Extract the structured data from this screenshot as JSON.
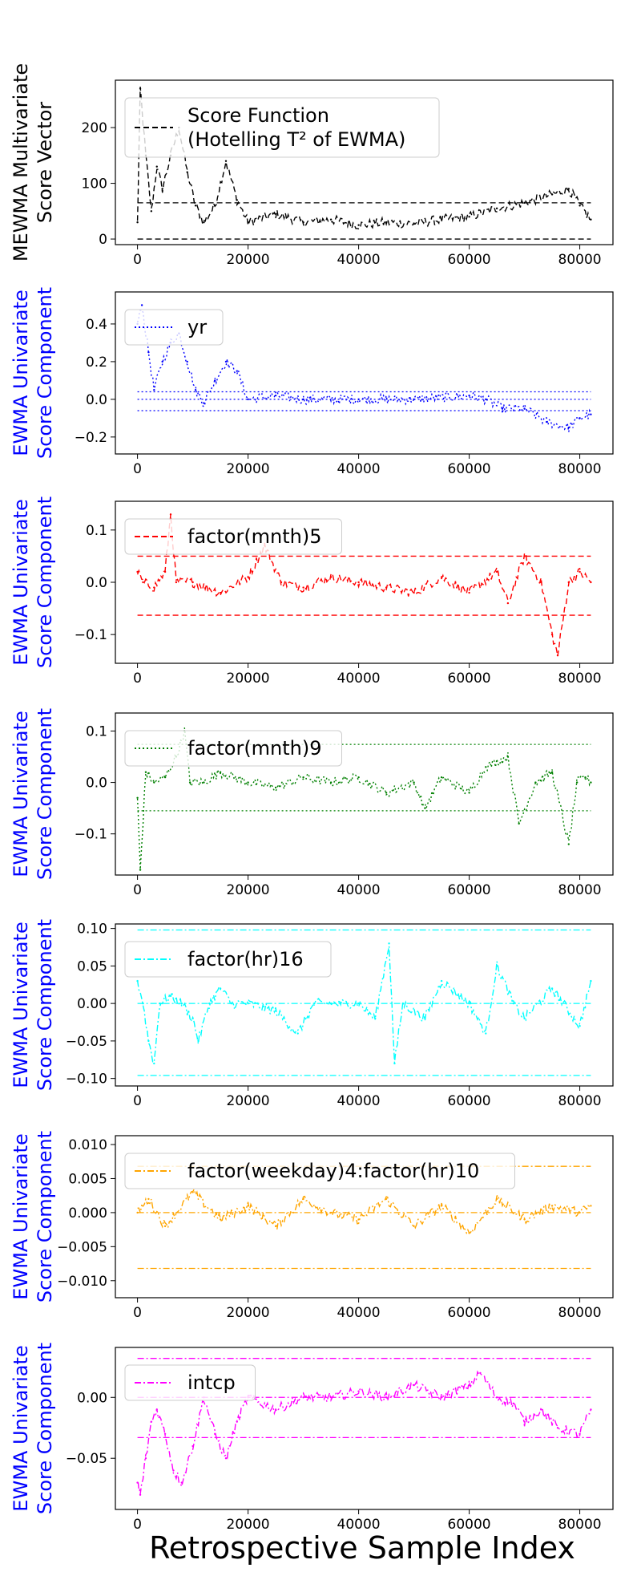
{
  "xlabel": "Retrospective Sample Index",
  "chart_data": [
    {
      "type": "line",
      "ylabel": [
        "MEWMA Multivariate",
        "Score Vector"
      ],
      "ylabel_color": "#000000",
      "color": "#000000",
      "line_style": "dashed",
      "legend": [
        "Score Function",
        "(Hotelling T² of EWMA)"
      ],
      "xlim": [
        -4000,
        86000
      ],
      "ylim": [
        -10,
        285
      ],
      "xticks": [
        0,
        20000,
        40000,
        60000,
        80000
      ],
      "yticks": [
        0,
        100,
        200
      ],
      "ytick_labels": [
        "0",
        "100",
        "200"
      ],
      "ref_lines": [
        65,
        0
      ],
      "series": [
        {
          "x": [
            0,
            500,
            1500,
            2500,
            3500,
            4500,
            6000,
            7500,
            9000,
            10500,
            12000,
            14000,
            16000,
            18000,
            20000,
            25000,
            30000,
            35000,
            40000,
            45000,
            50000,
            55000,
            60000,
            65000,
            70000,
            75000,
            78000,
            80000,
            82000
          ],
          "values": [
            30,
            270,
            150,
            50,
            130,
            90,
            150,
            200,
            120,
            60,
            30,
            60,
            140,
            70,
            30,
            45,
            30,
            35,
            25,
            30,
            28,
            35,
            40,
            55,
            65,
            80,
            90,
            60,
            35
          ]
        }
      ]
    },
    {
      "type": "line",
      "ylabel": [
        "EWMA Univariate",
        "Score Component"
      ],
      "ylabel_color": "#0000ff",
      "color": "#0000ff",
      "line_style": "dotted",
      "legend": [
        "yr"
      ],
      "xlim": [
        -4000,
        86000
      ],
      "ylim": [
        -0.29,
        0.57
      ],
      "xticks": [
        0,
        20000,
        40000,
        60000,
        80000
      ],
      "yticks": [
        -0.2,
        0.0,
        0.2,
        0.4
      ],
      "ytick_labels": [
        "−0.2",
        "0.0",
        "0.2",
        "0.4"
      ],
      "ref_lines": [
        0.04,
        0.0,
        -0.06
      ],
      "series": [
        {
          "x": [
            0,
            800,
            2000,
            3000,
            4500,
            6000,
            7500,
            9000,
            10500,
            12000,
            14000,
            16000,
            18000,
            20000,
            25000,
            30000,
            40000,
            50000,
            60000,
            63000,
            66000,
            70000,
            74000,
            78000,
            80000,
            82000
          ],
          "values": [
            0.4,
            0.5,
            0.25,
            0.05,
            0.2,
            0.3,
            0.35,
            0.2,
            0.05,
            -0.02,
            0.1,
            0.2,
            0.15,
            0.0,
            0.02,
            0.0,
            0.0,
            0.0,
            0.02,
            0.0,
            -0.05,
            -0.05,
            -0.12,
            -0.15,
            -0.1,
            -0.08
          ]
        }
      ]
    },
    {
      "type": "line",
      "ylabel": [
        "EWMA Univariate",
        "Score Component"
      ],
      "ylabel_color": "#0000ff",
      "color": "#ff0000",
      "line_style": "dashed",
      "legend": [
        "factor(mnth)5"
      ],
      "xlim": [
        -4000,
        86000
      ],
      "ylim": [
        -0.155,
        0.155
      ],
      "xticks": [
        0,
        20000,
        40000,
        60000,
        80000
      ],
      "yticks": [
        -0.1,
        0.0,
        0.1
      ],
      "ytick_labels": [
        "−0.1",
        "0.0",
        "0.1"
      ],
      "ref_lines": [
        0.05,
        -0.063
      ],
      "series": [
        {
          "x": [
            0,
            1000,
            3000,
            5000,
            6000,
            7000,
            10000,
            15000,
            20000,
            23000,
            26000,
            30000,
            35000,
            40000,
            45000,
            50000,
            55000,
            60000,
            65000,
            67000,
            70000,
            73000,
            75000,
            76000,
            78000,
            80000,
            82000
          ],
          "values": [
            0.02,
            0.0,
            -0.01,
            0.02,
            0.13,
            0.0,
            0.0,
            -0.02,
            0.01,
            0.07,
            0.0,
            -0.01,
            0.01,
            0.0,
            -0.01,
            -0.02,
            0.01,
            -0.02,
            0.02,
            -0.04,
            0.05,
            0.0,
            -0.1,
            -0.14,
            0.0,
            0.02,
            0.0
          ]
        }
      ]
    },
    {
      "type": "line",
      "ylabel": [
        "EWMA Univariate",
        "Score Component"
      ],
      "ylabel_color": "#0000ff",
      "color": "#008000",
      "line_style": "dotted",
      "legend": [
        "factor(mnth)9"
      ],
      "xlim": [
        -4000,
        86000
      ],
      "ylim": [
        -0.18,
        0.135
      ],
      "xticks": [
        0,
        20000,
        40000,
        60000,
        80000
      ],
      "yticks": [
        -0.1,
        0.0,
        0.1
      ],
      "ytick_labels": [
        "−0.1",
        "0.0",
        "0.1"
      ],
      "ref_lines": [
        0.074,
        -0.055
      ],
      "series": [
        {
          "x": [
            0,
            500,
            1500,
            3000,
            5000,
            7000,
            8500,
            9500,
            12000,
            15000,
            20000,
            25000,
            30000,
            35000,
            40000,
            45000,
            50000,
            52000,
            55000,
            60000,
            63000,
            67000,
            69000,
            72000,
            75000,
            78000,
            79500,
            81000,
            82000
          ],
          "values": [
            -0.03,
            -0.17,
            0.02,
            0.0,
            0.01,
            0.05,
            0.1,
            0.0,
            0.0,
            0.02,
            0.0,
            -0.01,
            0.01,
            0.0,
            0.01,
            -0.02,
            0.0,
            -0.05,
            0.01,
            -0.02,
            0.03,
            0.05,
            -0.08,
            0.0,
            0.02,
            -0.12,
            0.0,
            0.01,
            0.0
          ]
        }
      ]
    },
    {
      "type": "line",
      "ylabel": [
        "EWMA Univariate",
        "Score Component"
      ],
      "ylabel_color": "#0000ff",
      "color": "#00ffff",
      "line_style": "dashdot",
      "legend": [
        "factor(hr)16"
      ],
      "xlim": [
        -4000,
        86000
      ],
      "ylim": [
        -0.11,
        0.106
      ],
      "xticks": [
        0,
        20000,
        40000,
        60000,
        80000
      ],
      "yticks": [
        -0.1,
        -0.05,
        0.0,
        0.05,
        0.1
      ],
      "ytick_labels": [
        "−0.10",
        "−0.05",
        "0.00",
        "0.05",
        "0.10"
      ],
      "ref_lines": [
        0.098,
        0.0,
        -0.096
      ],
      "series": [
        {
          "x": [
            0,
            1000,
            2000,
            3000,
            4000,
            6000,
            8000,
            10000,
            11000,
            13000,
            15000,
            17000,
            20000,
            25000,
            29000,
            32000,
            35000,
            40000,
            43000,
            45500,
            46500,
            48000,
            52000,
            55000,
            60000,
            63000,
            65000,
            68000,
            70000,
            75000,
            80000,
            82000
          ],
          "values": [
            0.03,
            0.0,
            -0.05,
            -0.08,
            0.0,
            0.01,
            0.0,
            -0.02,
            -0.05,
            0.0,
            0.02,
            0.0,
            0.0,
            -0.01,
            -0.04,
            0.0,
            0.0,
            0.0,
            -0.02,
            0.08,
            -0.08,
            0.0,
            -0.02,
            0.03,
            0.0,
            -0.04,
            0.05,
            0.0,
            -0.02,
            0.02,
            -0.03,
            0.03
          ]
        }
      ]
    },
    {
      "type": "line",
      "ylabel": [
        "EWMA Univariate",
        "Score Component"
      ],
      "ylabel_color": "#0000ff",
      "color": "#ffa500",
      "line_style": "dashdot",
      "legend": [
        "factor(weekday)4:factor(hr)10"
      ],
      "xlim": [
        -4000,
        86000
      ],
      "ylim": [
        -0.0125,
        0.0113
      ],
      "xticks": [
        0,
        20000,
        40000,
        60000,
        80000
      ],
      "yticks": [
        -0.01,
        -0.005,
        0.0,
        0.005,
        0.01
      ],
      "ytick_labels": [
        "−0.010",
        "−0.005",
        "0.000",
        "0.005",
        "0.010"
      ],
      "ref_lines": [
        0.0068,
        0.0,
        -0.0082
      ],
      "series": [
        {
          "x": [
            0,
            2000,
            5000,
            10000,
            15000,
            20000,
            25000,
            30000,
            35000,
            40000,
            45000,
            50000,
            55000,
            60000,
            65000,
            70000,
            75000,
            80000,
            82000
          ],
          "values": [
            0.0,
            0.002,
            -0.002,
            0.003,
            -0.001,
            0.001,
            -0.002,
            0.002,
            0.0,
            -0.001,
            0.002,
            -0.002,
            0.001,
            -0.003,
            0.002,
            -0.001,
            0.001,
            0.0,
            0.001
          ]
        }
      ]
    },
    {
      "type": "line",
      "ylabel": [
        "EWMA Univariate",
        "Score Component"
      ],
      "ylabel_color": "#0000ff",
      "color": "#ff00ff",
      "line_style": "dashdot",
      "legend": [
        "intcp"
      ],
      "xlim": [
        -4000,
        86000
      ],
      "ylim": [
        -0.092,
        0.041
      ],
      "xticks": [
        0,
        20000,
        40000,
        60000,
        80000
      ],
      "yticks": [
        -0.05,
        0.0
      ],
      "ytick_labels": [
        "−0.05",
        "0.00"
      ],
      "ref_lines": [
        0.032,
        0.0,
        -0.033
      ],
      "series": [
        {
          "x": [
            0,
            500,
            1500,
            2500,
            3500,
            5000,
            6500,
            8000,
            10000,
            12000,
            14000,
            16000,
            18000,
            20000,
            25000,
            30000,
            35000,
            40000,
            45000,
            50000,
            55000,
            60000,
            62000,
            65000,
            68000,
            70000,
            73000,
            76000,
            80000,
            82000
          ],
          "values": [
            -0.07,
            -0.08,
            -0.05,
            -0.02,
            -0.01,
            -0.03,
            -0.06,
            -0.07,
            -0.04,
            0.0,
            -0.03,
            -0.05,
            -0.02,
            0.0,
            -0.01,
            0.0,
            0.0,
            0.005,
            0.0,
            0.01,
            0.0,
            0.01,
            0.02,
            0.0,
            -0.005,
            -0.02,
            -0.01,
            -0.025,
            -0.03,
            -0.01
          ]
        }
      ]
    }
  ]
}
